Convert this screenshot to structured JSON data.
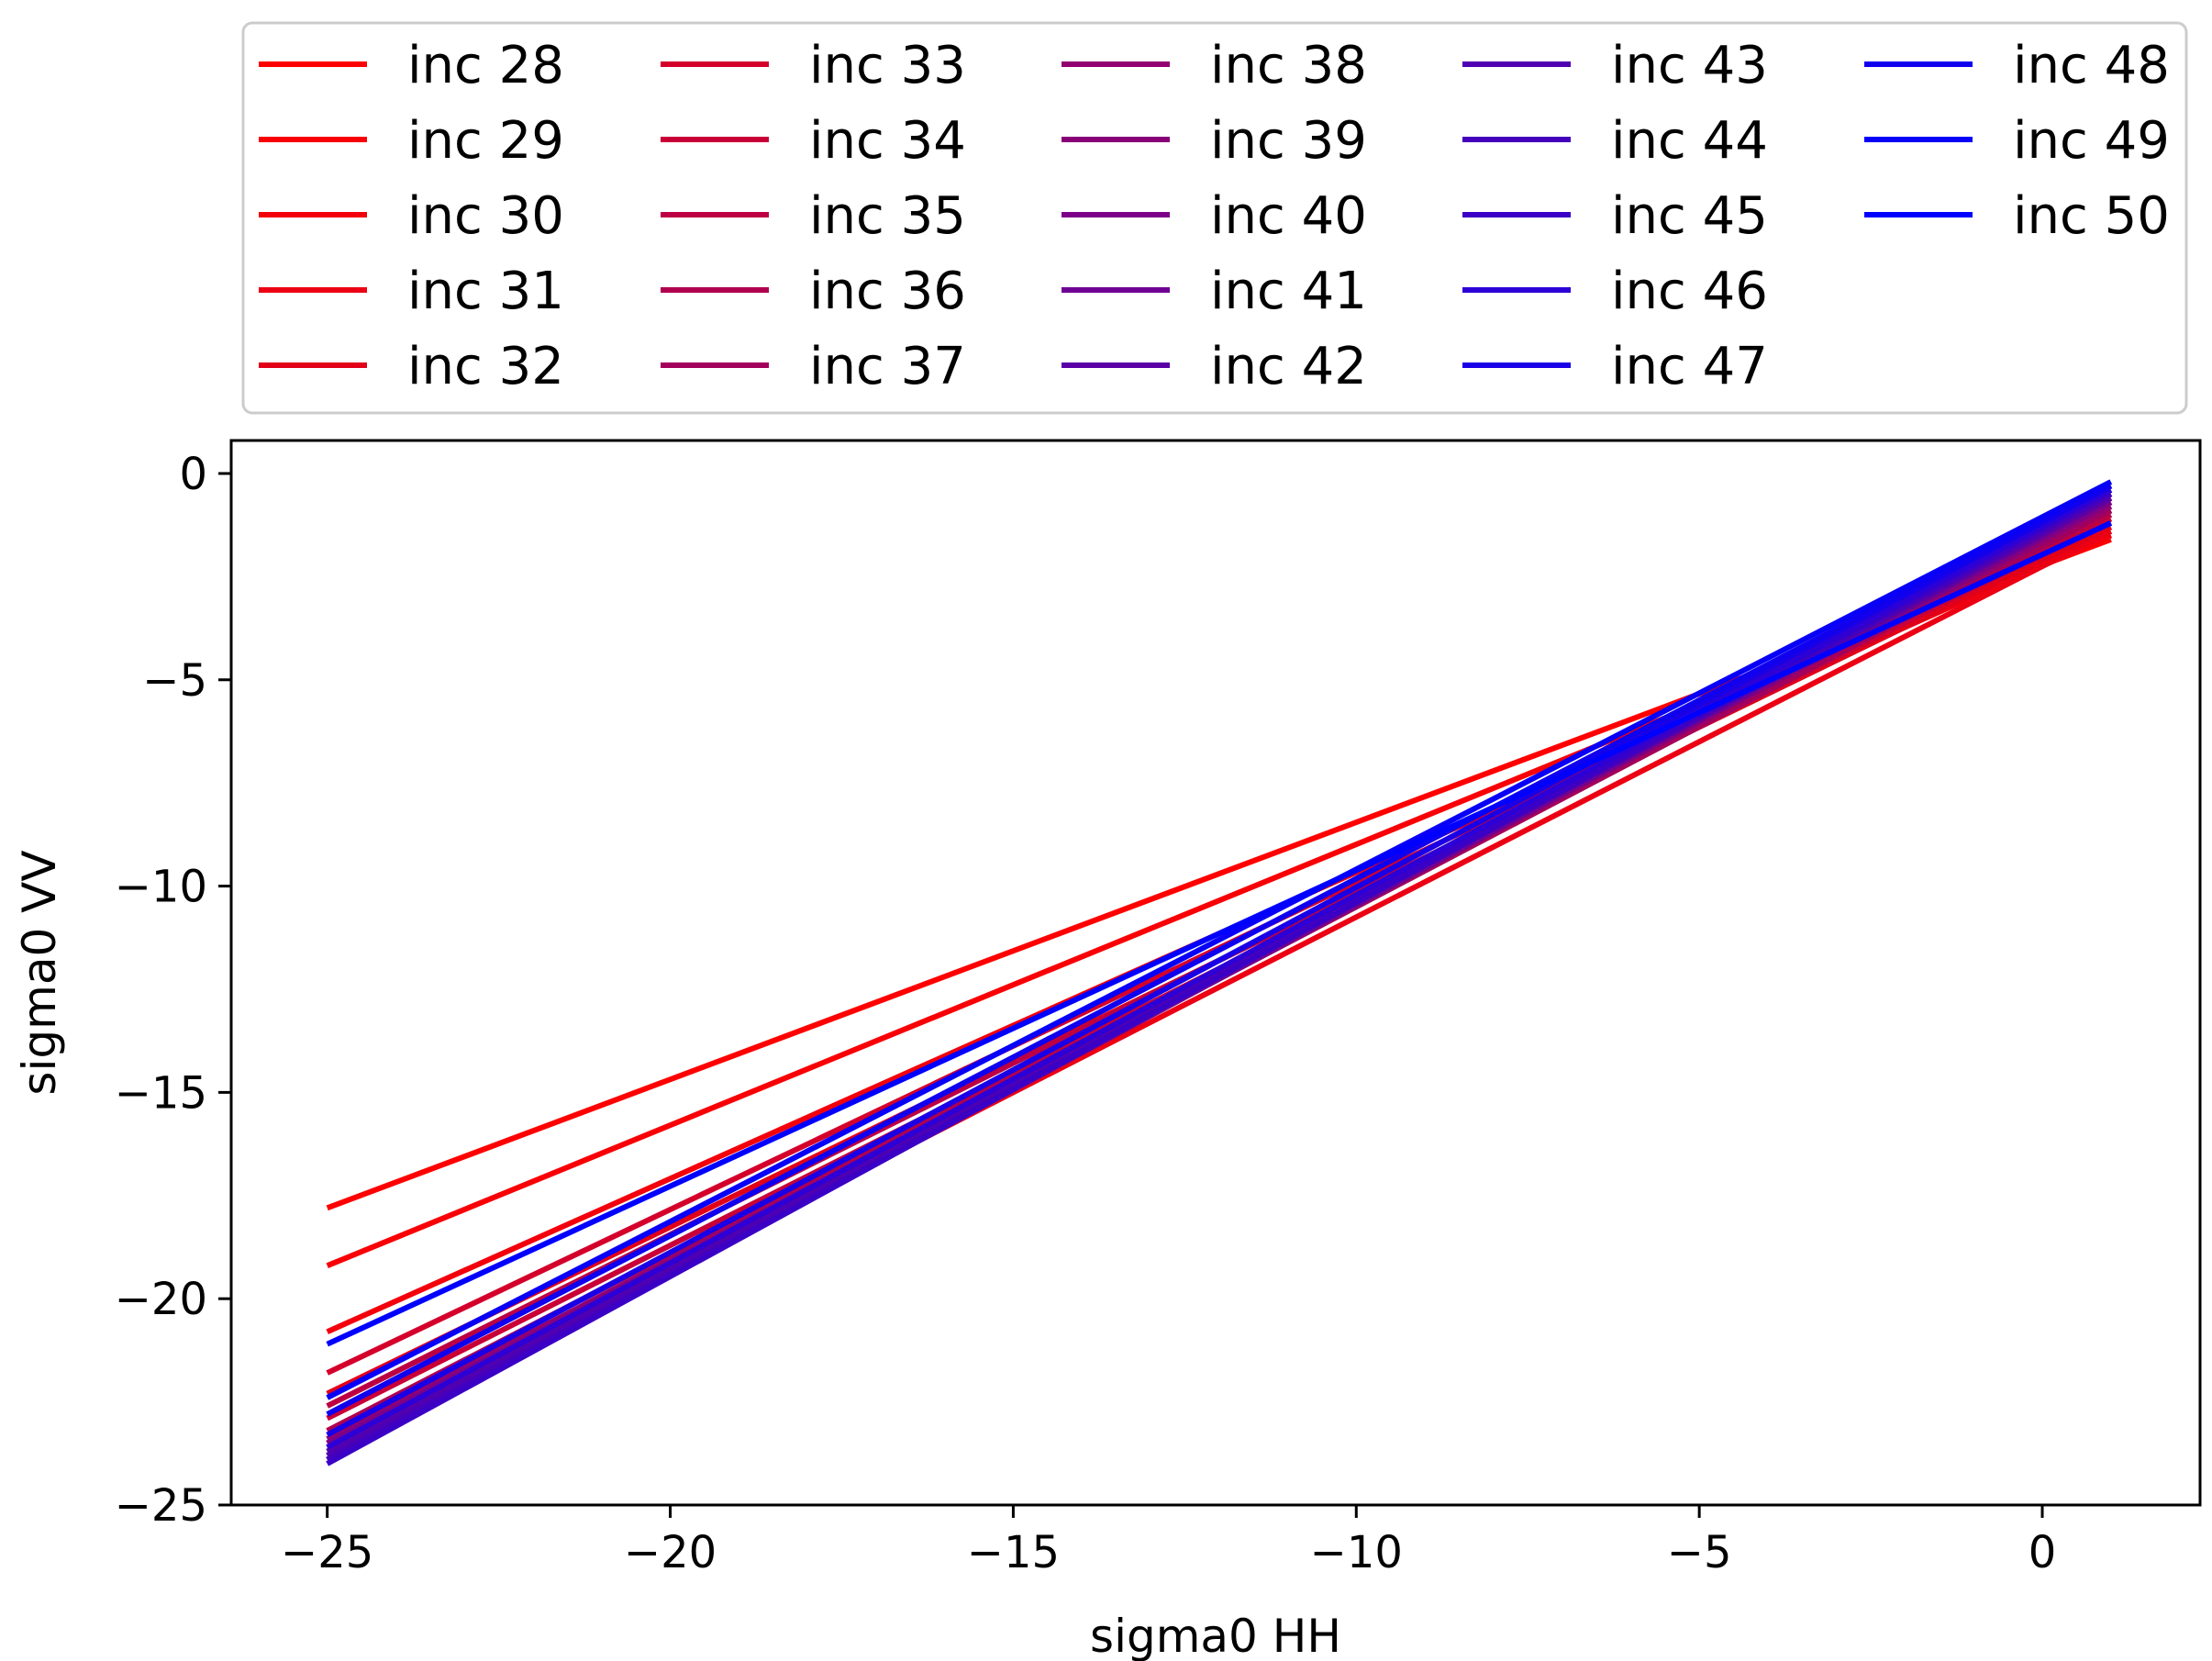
{
  "chart_data": {
    "type": "line",
    "title": "",
    "xlabel": "sigma0 HH",
    "ylabel": "sigma0 VV",
    "xlim": [
      -26.4,
      2.3
    ],
    "ylim": [
      -25.0,
      0.8
    ],
    "xticks": [
      -25,
      -20,
      -15,
      -10,
      -5,
      0
    ],
    "xtick_labels": [
      "−25",
      "−20",
      "−15",
      "−10",
      "−5",
      "0"
    ],
    "yticks": [
      0,
      -5,
      -10,
      -15,
      -20,
      -25
    ],
    "ytick_labels": [
      "0",
      "−5",
      "−10",
      "−15",
      "−20",
      "−25"
    ],
    "grid": false,
    "legend": {
      "placement": "top",
      "ncol": 5
    },
    "series": [
      {
        "name": "inc 28",
        "color": "#ff0000",
        "x": [
          -25,
          1
        ],
        "y": [
          -17.8,
          -1.6
        ]
      },
      {
        "name": "inc 29",
        "color": "#f90006",
        "x": [
          -25,
          1
        ],
        "y": [
          -19.2,
          -1.5
        ]
      },
      {
        "name": "inc 30",
        "color": "#f3000c",
        "x": [
          -25,
          1
        ],
        "y": [
          -20.8,
          -1.5
        ]
      },
      {
        "name": "inc 31",
        "color": "#ec0013",
        "x": [
          -25,
          1
        ],
        "y": [
          -23.5,
          -1.4
        ]
      },
      {
        "name": "inc 32",
        "color": "#e20019",
        "x": [
          -25,
          1
        ],
        "y": [
          -22.3,
          -1.3
        ]
      },
      {
        "name": "inc 33",
        "color": "#d4002b",
        "x": [
          -25,
          1
        ],
        "y": [
          -21.8,
          -1.2
        ]
      },
      {
        "name": "inc 34",
        "color": "#c80037",
        "x": [
          -25,
          1
        ],
        "y": [
          -22.9,
          -1.1
        ]
      },
      {
        "name": "inc 35",
        "color": "#bc0043",
        "x": [
          -25,
          1
        ],
        "y": [
          -22.6,
          -1.0
        ]
      },
      {
        "name": "inc 36",
        "color": "#b0004f",
        "x": [
          -25,
          1
        ],
        "y": [
          -23.2,
          -0.9
        ]
      },
      {
        "name": "inc 37",
        "color": "#a4005b",
        "x": [
          -25,
          1
        ],
        "y": [
          -23.6,
          -0.9
        ]
      },
      {
        "name": "inc 38",
        "color": "#930070",
        "x": [
          -25,
          1
        ],
        "y": [
          -23.4,
          -0.8
        ]
      },
      {
        "name": "inc 39",
        "color": "#880078",
        "x": [
          -25,
          1
        ],
        "y": [
          -23.8,
          -0.7
        ]
      },
      {
        "name": "inc 40",
        "color": "#7c0088",
        "x": [
          -25,
          1
        ],
        "y": [
          -23.5,
          -0.7
        ]
      },
      {
        "name": "inc 41",
        "color": "#6e0094",
        "x": [
          -25,
          1
        ],
        "y": [
          -23.9,
          -0.6
        ]
      },
      {
        "name": "inc 42",
        "color": "#5a00a6",
        "x": [
          -25,
          1
        ],
        "y": [
          -23.7,
          -0.6
        ]
      },
      {
        "name": "inc 43",
        "color": "#4e00b2",
        "x": [
          -25,
          1
        ],
        "y": [
          -23.8,
          -0.5
        ]
      },
      {
        "name": "inc 44",
        "color": "#4400bc",
        "x": [
          -25,
          1
        ],
        "y": [
          -23.9,
          -0.5
        ]
      },
      {
        "name": "inc 45",
        "color": "#3b00c6",
        "x": [
          -25,
          1
        ],
        "y": [
          -24.0,
          -0.4
        ]
      },
      {
        "name": "inc 46",
        "color": "#2c00d6",
        "x": [
          -25,
          1
        ],
        "y": [
          -23.6,
          -0.4
        ]
      },
      {
        "name": "inc 47",
        "color": "#1a00e6",
        "x": [
          -25,
          1
        ],
        "y": [
          -23.3,
          -0.3
        ]
      },
      {
        "name": "inc 48",
        "color": "#1000ee",
        "x": [
          -25,
          1
        ],
        "y": [
          -22.8,
          -0.3
        ]
      },
      {
        "name": "inc 49",
        "color": "#0800f7",
        "x": [
          -25,
          1
        ],
        "y": [
          -22.4,
          -0.2
        ]
      },
      {
        "name": "inc 50",
        "color": "#0000ff",
        "x": [
          -25,
          1
        ],
        "y": [
          -21.1,
          -1.2
        ]
      }
    ]
  }
}
